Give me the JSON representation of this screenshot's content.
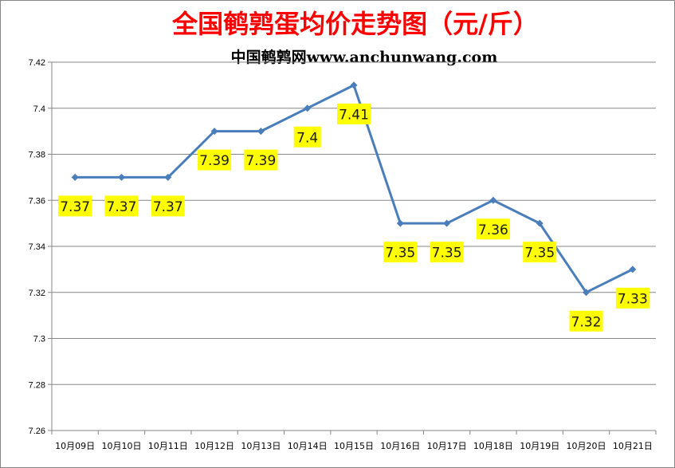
{
  "chart_data": {
    "type": "line",
    "title": "全国鹌鹑蛋均价走势图（元/斤）",
    "subtitle": "中国鹌鹑网www.anchunwang.com",
    "categories": [
      "10月09日",
      "10月10日",
      "10月11日",
      "10月12日",
      "10月13日",
      "10月14日",
      "10月15日",
      "10月16日",
      "10月17日",
      "10月18日",
      "10月19日",
      "10月20日",
      "10月21日"
    ],
    "values": [
      7.37,
      7.37,
      7.37,
      7.39,
      7.39,
      7.4,
      7.41,
      7.35,
      7.35,
      7.36,
      7.35,
      7.32,
      7.33
    ],
    "data_labels": [
      "7.37",
      "7.37",
      "7.37",
      "7.39",
      "7.39",
      "7.4",
      "7.41",
      "7.35",
      "7.35",
      "7.36",
      "7.35",
      "7.32",
      "7.33"
    ],
    "ylim": [
      7.26,
      7.42
    ],
    "y_ticks": [
      "7.26",
      "7.28",
      "7.3",
      "7.32",
      "7.34",
      "7.36",
      "7.38",
      "7.4",
      "7.42"
    ],
    "grid": true,
    "legend": "none",
    "colors": {
      "title": "#ff0000",
      "subtitle": "#000000",
      "line": "#4a7ebb",
      "grid": "#868686",
      "label_bg": "#ffff00"
    }
  }
}
